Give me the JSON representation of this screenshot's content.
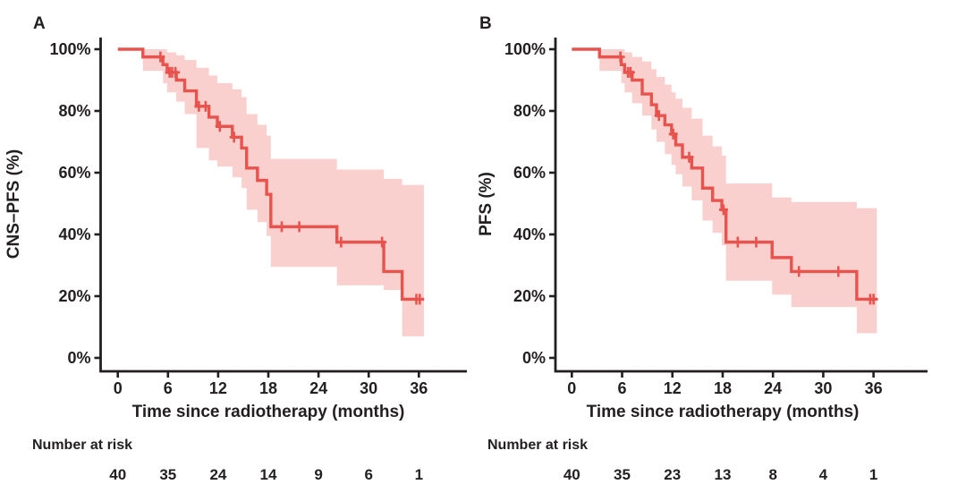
{
  "figure": {
    "panels": [
      "A",
      "B"
    ],
    "colors": {
      "curve": "#e8534e",
      "ci_band": "#f9d0cd",
      "text": "#231f20",
      "background": "#ffffff"
    }
  },
  "chart_data": [
    {
      "type": "line",
      "subtype": "kaplan_meier_step_curve_with_ci",
      "panel": "A",
      "ylabel": "CNS–PFS (%)",
      "xlabel": "Time since radiotherapy (months)",
      "x_ticks": [
        0,
        6,
        12,
        18,
        24,
        30,
        36
      ],
      "y_ticks": [
        0,
        20,
        40,
        60,
        80,
        100
      ],
      "y_tick_suffix": "%",
      "xlim": [
        0,
        39
      ],
      "ylim": [
        0,
        100
      ],
      "grid": false,
      "legend": "none",
      "steps_format": [
        "time_months",
        "survival_pct",
        "ci_upper_pct",
        "ci_lower_pct"
      ],
      "steps": [
        [
          0,
          100,
          100,
          100
        ],
        [
          3.0,
          97.5,
          100,
          93
        ],
        [
          5.4,
          95,
          100,
          89
        ],
        [
          5.9,
          92.5,
          99,
          86
        ],
        [
          7.0,
          90,
          98,
          83
        ],
        [
          8.0,
          86.5,
          96.5,
          79
        ],
        [
          9.4,
          81.5,
          94,
          68
        ],
        [
          10.9,
          78,
          91.5,
          64
        ],
        [
          11.9,
          75,
          89,
          62
        ],
        [
          13.7,
          71.5,
          87,
          58.5
        ],
        [
          14.8,
          68,
          84.5,
          55
        ],
        [
          15.4,
          61.5,
          79,
          48
        ],
        [
          16.7,
          57.5,
          75.5,
          44
        ],
        [
          17.8,
          53,
          72,
          39.5
        ],
        [
          18.3,
          42.5,
          64.5,
          29.5
        ],
        [
          26.2,
          37.5,
          61,
          23.5
        ],
        [
          31.8,
          28,
          58,
          22
        ],
        [
          34.0,
          19,
          56,
          7
        ]
      ],
      "curve_end_t": 36.6,
      "censors_format": [
        "time_months",
        "survival_pct"
      ],
      "censors": [
        [
          5.1,
          97.5
        ],
        [
          6.2,
          92.5
        ],
        [
          6.5,
          92.5
        ],
        [
          6.9,
          92.5
        ],
        [
          9.7,
          81.5
        ],
        [
          10.5,
          81.5
        ],
        [
          12.2,
          75
        ],
        [
          13.9,
          71.5
        ],
        [
          19.6,
          42.5
        ],
        [
          21.7,
          42.5
        ],
        [
          26.7,
          37.5
        ],
        [
          31.6,
          37.5
        ],
        [
          35.7,
          19
        ],
        [
          36.1,
          19
        ]
      ],
      "number_at_risk": {
        "label": "Number at risk",
        "times": [
          0,
          6,
          12,
          18,
          24,
          30,
          36
        ],
        "values": [
          40,
          35,
          24,
          14,
          9,
          6,
          1
        ]
      }
    },
    {
      "type": "line",
      "subtype": "kaplan_meier_step_curve_with_ci",
      "panel": "B",
      "ylabel": "PFS (%)",
      "xlabel": "Time since radiotherapy (months)",
      "x_ticks": [
        0,
        6,
        12,
        18,
        24,
        30,
        36
      ],
      "y_ticks": [
        0,
        20,
        40,
        60,
        80,
        100
      ],
      "y_tick_suffix": "%",
      "xlim": [
        0,
        39
      ],
      "ylim": [
        0,
        100
      ],
      "grid": false,
      "legend": "none",
      "steps_format": [
        "time_months",
        "survival_pct",
        "ci_upper_pct",
        "ci_lower_pct"
      ],
      "steps": [
        [
          0,
          100,
          100,
          100
        ],
        [
          3.3,
          97.5,
          100,
          93
        ],
        [
          5.9,
          95,
          100,
          89
        ],
        [
          6.3,
          92.5,
          99,
          86
        ],
        [
          7.2,
          90,
          97.5,
          82.5
        ],
        [
          8.4,
          85.5,
          96,
          78.5
        ],
        [
          9.5,
          82,
          93.5,
          74
        ],
        [
          10.1,
          78.5,
          91,
          70
        ],
        [
          11.1,
          75.5,
          88.5,
          66
        ],
        [
          11.9,
          72.5,
          86,
          62.5
        ],
        [
          12.4,
          69,
          84,
          59.5
        ],
        [
          13.2,
          65,
          81,
          55.5
        ],
        [
          14.3,
          61.5,
          77.5,
          51
        ],
        [
          15.6,
          55,
          72,
          44.5
        ],
        [
          16.8,
          51,
          68.5,
          40.5
        ],
        [
          17.9,
          48,
          65.5,
          36.5
        ],
        [
          18.4,
          37.5,
          56.5,
          25
        ],
        [
          23.9,
          32.5,
          52,
          20.5
        ],
        [
          26.2,
          28,
          50.5,
          16.5
        ],
        [
          34.0,
          19,
          48.5,
          8
        ]
      ],
      "curve_end_t": 36.4,
      "censors_format": [
        "time_months",
        "survival_pct"
      ],
      "censors": [
        [
          5.8,
          97.5
        ],
        [
          6.7,
          92.5
        ],
        [
          7.0,
          92.5
        ],
        [
          10.4,
          78.5
        ],
        [
          12.1,
          72.5
        ],
        [
          14.0,
          65
        ],
        [
          18.1,
          48
        ],
        [
          19.8,
          37.5
        ],
        [
          22.0,
          37.5
        ],
        [
          27.1,
          28
        ],
        [
          31.8,
          28
        ],
        [
          35.6,
          19
        ],
        [
          36.0,
          19
        ]
      ],
      "number_at_risk": {
        "label": "Number at risk",
        "times": [
          0,
          6,
          12,
          18,
          24,
          30,
          36
        ],
        "values": [
          40,
          35,
          23,
          13,
          8,
          4,
          1
        ]
      }
    }
  ]
}
